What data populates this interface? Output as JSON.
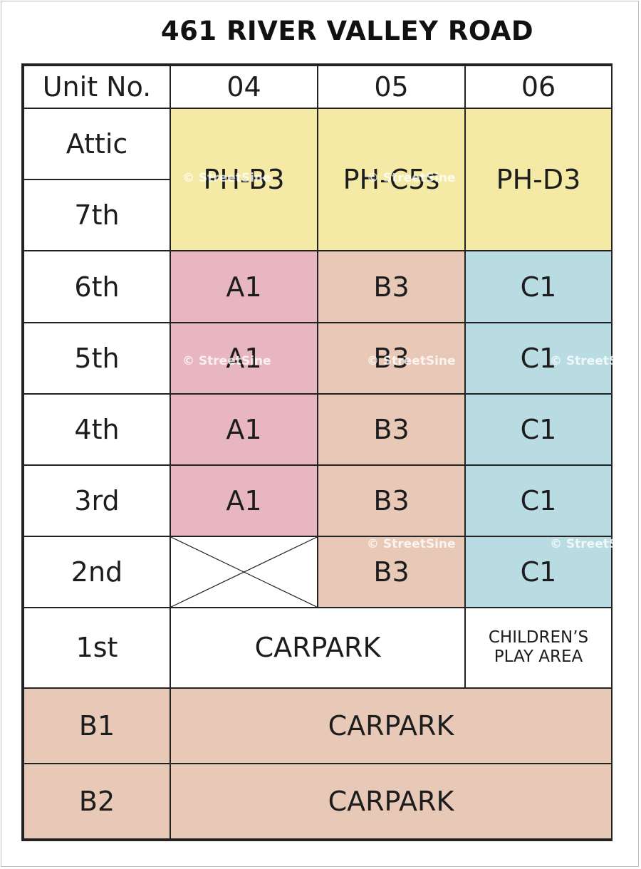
{
  "title": "461 RIVER VALLEY ROAD",
  "header": {
    "label": "Unit No.",
    "units": [
      "04",
      "05",
      "06"
    ]
  },
  "floors": {
    "attic": "Attic",
    "seventh": "7th",
    "sixth": "6th",
    "fifth": "5th",
    "fourth": "4th",
    "third": "3rd",
    "second": "2nd",
    "first": "1st",
    "b1": "B1",
    "b2": "B2"
  },
  "penthouse": [
    "PH-B3",
    "PH-C5s",
    "PH-D3"
  ],
  "unit_types": {
    "col04": "A1",
    "col05": "B3",
    "col06": "C1"
  },
  "first_floor": {
    "carpark": "CARPARK",
    "play_line1": "CHILDREN’S",
    "play_line2": "PLAY AREA"
  },
  "basement": {
    "b1": "CARPARK",
    "b2": "CARPARK"
  },
  "watermark": "© StreetSine",
  "colors": {
    "penthouse": "#f4eaa6",
    "col04": "#e7b6c0",
    "col05": "#e8c8b6",
    "col06": "#b9dce3"
  }
}
